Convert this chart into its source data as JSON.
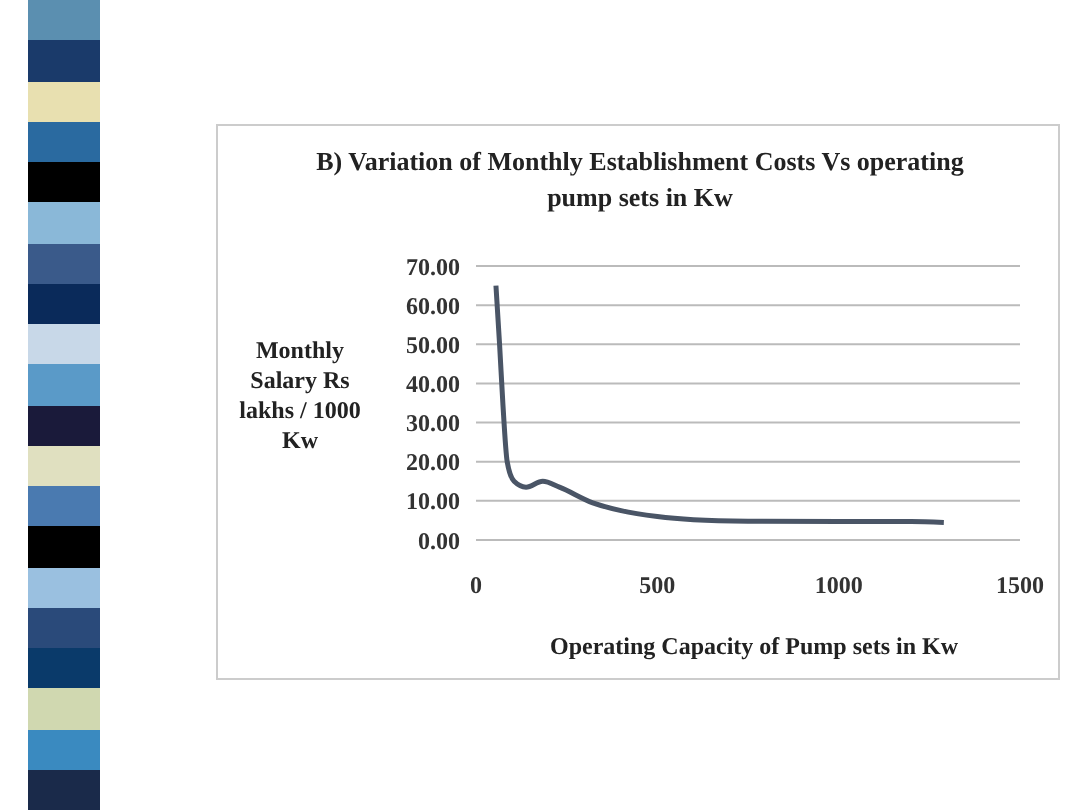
{
  "chart_data": {
    "type": "line",
    "title": "B) Variation of Monthly Establishment Costs Vs operating pump sets in Kw",
    "xlabel": "Operating Capacity of Pump sets in Kw",
    "ylabel": "Monthly Salary Rs lakhs / 1000 Kw",
    "x": [
      55,
      65,
      74,
      86,
      105,
      138,
      184,
      230,
      322,
      400,
      500,
      600,
      750,
      1000,
      1200,
      1290
    ],
    "series": [
      {
        "color": "#4a5566",
        "values": [
          65,
          50,
          35,
          20,
          15,
          13.5,
          15,
          13.5,
          9.5,
          7.5,
          6,
          5.2,
          4.8,
          4.7,
          4.7,
          4.5
        ]
      }
    ],
    "xlim": [
      0,
      1500
    ],
    "xticks": [
      0,
      500,
      1000,
      1500
    ],
    "ylim": [
      0,
      70
    ],
    "yticks": [
      {
        "value": 0,
        "label": "0.00"
      },
      {
        "value": 10,
        "label": "10.00"
      },
      {
        "value": 20,
        "label": "20.00"
      },
      {
        "value": 30,
        "label": "30.00"
      },
      {
        "value": 40,
        "label": "40.00"
      },
      {
        "value": 50,
        "label": "50.00"
      },
      {
        "value": 60,
        "label": "60.00"
      },
      {
        "value": 70,
        "label": "70.00"
      }
    ],
    "grid": "y",
    "legend": false,
    "marker": "none",
    "line_style": "solid"
  }
}
